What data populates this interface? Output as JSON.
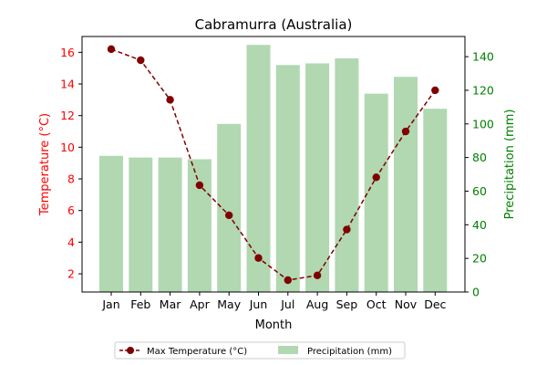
{
  "chart_data": {
    "type": "bar+line",
    "title": "Cabramurra (Australia)",
    "xlabel": "Month",
    "categories": [
      "Jan",
      "Feb",
      "Mar",
      "Apr",
      "May",
      "Jun",
      "Jul",
      "Aug",
      "Sep",
      "Oct",
      "Nov",
      "Dec"
    ],
    "series": [
      {
        "name": "Max Temperature (°C)",
        "kind": "line",
        "axis": "left",
        "color": "#800000",
        "values": [
          16.2,
          15.5,
          13.0,
          7.6,
          5.7,
          3.0,
          1.6,
          1.9,
          4.8,
          8.1,
          11.0,
          13.6
        ]
      },
      {
        "name": "Precipitation (mm)",
        "kind": "bar",
        "axis": "right",
        "color": "#b1d8b1",
        "values": [
          81,
          80,
          80,
          79,
          100,
          147,
          135,
          136,
          139,
          118,
          128,
          109
        ]
      }
    ],
    "y_left": {
      "label": "Temperature (°C)",
      "color": "#ff0000",
      "lim": [
        0.85,
        17.0
      ],
      "ticks": [
        2,
        4,
        6,
        8,
        10,
        12,
        14,
        16
      ]
    },
    "y_right": {
      "label": "Precipitation (mm)",
      "color": "#008000",
      "lim": [
        0,
        152
      ],
      "ticks": [
        0,
        20,
        40,
        60,
        80,
        100,
        120,
        140
      ]
    },
    "grid": false,
    "legend_position": "bottom-center"
  }
}
